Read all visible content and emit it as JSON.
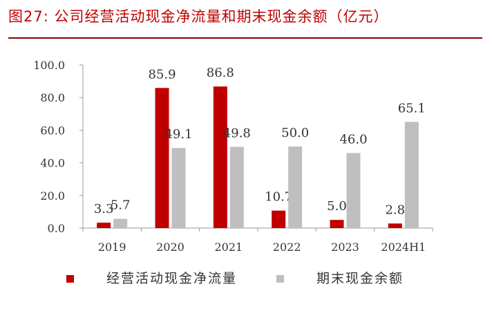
{
  "figure": {
    "title": "图27:  公司经营活动现金净流量和期末现金余额（亿元）"
  },
  "chart_data": {
    "type": "bar",
    "title": "图27:  公司经营活动现金净流量和期末现金余额（亿元）",
    "categories": [
      "2019",
      "2020",
      "2021",
      "2022",
      "2023",
      "2024H1"
    ],
    "series": [
      {
        "name": "经营活动现金净流量",
        "color": "#c00000",
        "values": [
          3.3,
          85.9,
          86.8,
          10.7,
          5.0,
          2.8
        ],
        "labels": [
          "3.3",
          "85.9",
          "86.8",
          "10.7",
          "5.0",
          "2.8"
        ]
      },
      {
        "name": "期末现金余额",
        "color": "#bfbfbf",
        "values": [
          5.7,
          49.1,
          49.8,
          50.0,
          46.0,
          65.1
        ],
        "labels": [
          "5.7",
          "49.1",
          "49.8",
          "50.0",
          "46.0",
          "65.1"
        ]
      }
    ],
    "yticks": [
      "0.0",
      "20.0",
      "40.0",
      "60.0",
      "80.0",
      "100.0"
    ],
    "ylim": [
      0,
      100
    ],
    "xlabel": "",
    "ylabel": "",
    "legend_position": "bottom",
    "grid": false
  }
}
